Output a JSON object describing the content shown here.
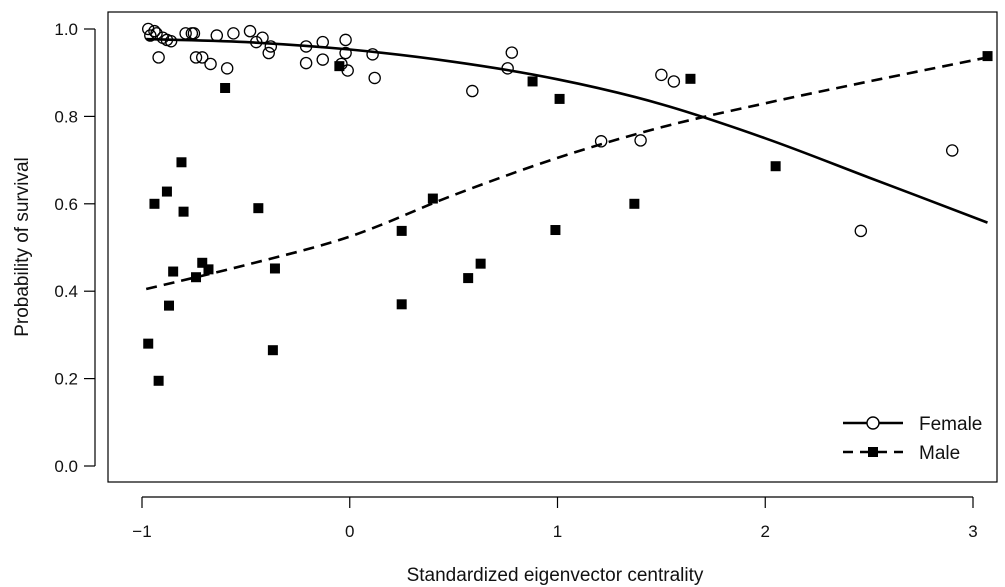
{
  "chart_data": {
    "type": "scatter",
    "title": "",
    "xlabel": "Standardized eigenvector centrality",
    "ylabel": "Probability of survival",
    "xlim": [
      -1.1,
      3.12
    ],
    "ylim": [
      -0.03,
      1.06
    ],
    "x_ticks": [
      -1,
      0,
      1,
      2,
      3
    ],
    "x_tick_labels": [
      "−1",
      "0",
      "1",
      "2",
      "3"
    ],
    "y_ticks": [
      0.0,
      0.2,
      0.4,
      0.6,
      0.8,
      1.0
    ],
    "y_tick_labels": [
      "0.0",
      "0.2",
      "0.4",
      "0.6",
      "0.8",
      "1.0"
    ],
    "grid": false,
    "legend_position": "bottom-right",
    "series": [
      {
        "name": "Female",
        "marker": "open-circle",
        "line_style": "solid",
        "color": "#000000",
        "points": [
          [
            -0.97,
            1.0
          ],
          [
            -0.96,
            0.985
          ],
          [
            -0.94,
            0.995
          ],
          [
            -0.93,
            0.99
          ],
          [
            -0.92,
            0.935
          ],
          [
            -0.9,
            0.98
          ],
          [
            -0.88,
            0.975
          ],
          [
            -0.86,
            0.972
          ],
          [
            -0.79,
            0.99
          ],
          [
            -0.76,
            0.99
          ],
          [
            -0.75,
            0.99
          ],
          [
            -0.74,
            0.935
          ],
          [
            -0.71,
            0.935
          ],
          [
            -0.67,
            0.92
          ],
          [
            -0.64,
            0.985
          ],
          [
            -0.59,
            0.91
          ],
          [
            -0.56,
            0.99
          ],
          [
            -0.48,
            0.995
          ],
          [
            -0.45,
            0.97
          ],
          [
            -0.42,
            0.98
          ],
          [
            -0.39,
            0.945
          ],
          [
            -0.38,
            0.96
          ],
          [
            -0.21,
            0.96
          ],
          [
            -0.21,
            0.922
          ],
          [
            -0.13,
            0.97
          ],
          [
            -0.13,
            0.93
          ],
          [
            -0.04,
            0.92
          ],
          [
            -0.02,
            0.945
          ],
          [
            -0.02,
            0.975
          ],
          [
            -0.01,
            0.905
          ],
          [
            0.11,
            0.942
          ],
          [
            0.12,
            0.888
          ],
          [
            0.59,
            0.858
          ],
          [
            0.76,
            0.91
          ],
          [
            0.78,
            0.946
          ],
          [
            1.21,
            0.743
          ],
          [
            1.4,
            0.745
          ],
          [
            1.5,
            0.895
          ],
          [
            1.56,
            0.88
          ],
          [
            2.46,
            0.538
          ],
          [
            2.9,
            0.722
          ]
        ],
        "curve_x": [
          -0.98,
          -0.5,
          0.0,
          0.5,
          1.0,
          1.5,
          2.0,
          2.5,
          3.07
        ],
        "curve_y": [
          0.977,
          0.97,
          0.953,
          0.925,
          0.885,
          0.828,
          0.75,
          0.66,
          0.557
        ]
      },
      {
        "name": "Male",
        "marker": "filled-square",
        "line_style": "dashed",
        "color": "#000000",
        "points": [
          [
            -0.97,
            0.28
          ],
          [
            -0.94,
            0.6
          ],
          [
            -0.92,
            0.195
          ],
          [
            -0.88,
            0.628
          ],
          [
            -0.87,
            0.367
          ],
          [
            -0.85,
            0.445
          ],
          [
            -0.81,
            0.695
          ],
          [
            -0.8,
            0.582
          ],
          [
            -0.74,
            0.432
          ],
          [
            -0.71,
            0.465
          ],
          [
            -0.68,
            0.45
          ],
          [
            -0.6,
            0.865
          ],
          [
            -0.44,
            0.59
          ],
          [
            -0.37,
            0.265
          ],
          [
            -0.36,
            0.452
          ],
          [
            -0.05,
            0.915
          ],
          [
            0.25,
            0.538
          ],
          [
            0.25,
            0.37
          ],
          [
            0.4,
            0.612
          ],
          [
            0.57,
            0.43
          ],
          [
            0.63,
            0.463
          ],
          [
            0.88,
            0.88
          ],
          [
            0.99,
            0.54
          ],
          [
            1.01,
            0.84
          ],
          [
            1.37,
            0.6
          ],
          [
            1.64,
            0.886
          ],
          [
            2.05,
            0.686
          ],
          [
            3.07,
            0.938
          ]
        ],
        "curve_x": [
          -0.98,
          -0.5,
          0.0,
          0.5,
          1.0,
          1.5,
          2.0,
          2.5,
          3.07
        ],
        "curve_y": [
          0.405,
          0.46,
          0.525,
          0.62,
          0.705,
          0.775,
          0.83,
          0.88,
          0.935
        ]
      }
    ]
  }
}
